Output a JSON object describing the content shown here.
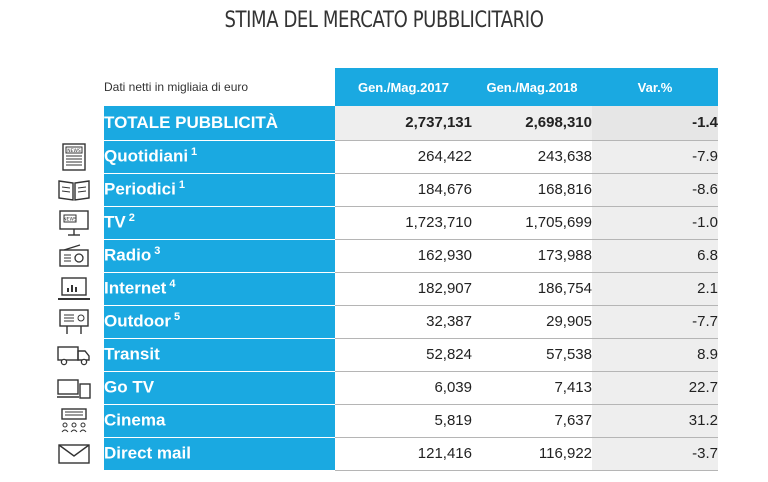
{
  "title": "STIMA DEL MERCATO PUBBLICITARIO",
  "table": {
    "unit_label": "Dati netti in migliaia di euro",
    "columns": [
      "Gen./Mag.2017",
      "Gen./Mag.2018",
      "Var.%"
    ],
    "total": {
      "label": "TOTALE PUBBLICITÀ",
      "v2017": "2,737,131",
      "v2018": "2,698,310",
      "var": "-1.4"
    },
    "rows": [
      {
        "label": "Quotidiani",
        "note": "1",
        "icon": "newspaper-icon",
        "v2017": "264,422",
        "v2018": "243,638",
        "var": "-7.9"
      },
      {
        "label": "Periodici",
        "note": "1",
        "icon": "open-book-icon",
        "v2017": "184,676",
        "v2018": "168,816",
        "var": "-8.6"
      },
      {
        "label": "TV",
        "note": "2",
        "icon": "tv-icon",
        "v2017": "1,723,710",
        "v2018": "1,705,699",
        "var": "-1.0"
      },
      {
        "label": "Radio",
        "note": "3",
        "icon": "radio-icon",
        "v2017": "162,930",
        "v2018": "173,988",
        "var": "6.8"
      },
      {
        "label": "Internet",
        "note": "4",
        "icon": "laptop-icon",
        "v2017": "182,907",
        "v2018": "186,754",
        "var": "2.1"
      },
      {
        "label": "Outdoor",
        "note": "5",
        "icon": "billboard-icon",
        "v2017": "32,387",
        "v2018": "29,905",
        "var": "-7.7"
      },
      {
        "label": "Transit",
        "note": "",
        "icon": "truck-icon",
        "v2017": "52,824",
        "v2018": "57,538",
        "var": "8.9"
      },
      {
        "label": "Go TV",
        "note": "",
        "icon": "devices-icon",
        "v2017": "6,039",
        "v2018": "7,413",
        "var": "22.7"
      },
      {
        "label": "Cinema",
        "note": "",
        "icon": "cinema-icon",
        "v2017": "5,819",
        "v2018": "7,637",
        "var": "31.2"
      },
      {
        "label": "Direct mail",
        "note": "",
        "icon": "envelope-icon",
        "v2017": "121,416",
        "v2018": "116,922",
        "var": "-3.7"
      }
    ]
  },
  "colors": {
    "accent": "#1aa9e1",
    "shade": "#eeeeee"
  }
}
